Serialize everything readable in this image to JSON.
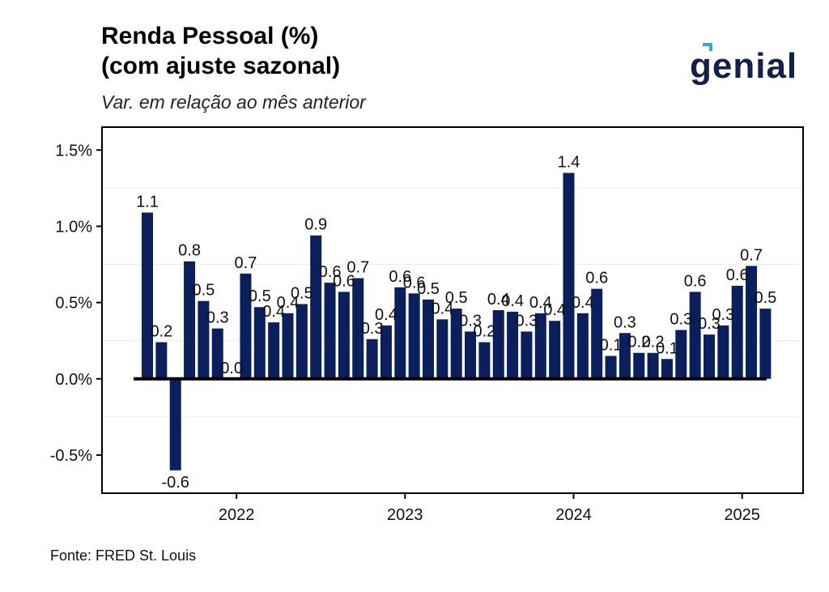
{
  "header": {
    "title_line1": "Renda Pessoal (%)",
    "title_line2": "(com ajuste sazonal)",
    "subtitle": "Var. em relação ao mês anterior",
    "logo_text": "genial"
  },
  "footer": {
    "source": "Fonte: FRED St. Louis"
  },
  "colors": {
    "bar": "#0b1f5c",
    "logo": "#14204a",
    "logo_accent": "#3aa8e0",
    "zero_line": "#000000"
  },
  "chart_data": {
    "type": "bar",
    "title": "Renda Pessoal (%) (com ajuste sazonal)",
    "subtitle": "Var. em relação ao mês anterior",
    "xlabel": "",
    "ylabel": "",
    "ylim": [
      -0.75,
      1.65
    ],
    "yticks": [
      -0.5,
      0.0,
      0.5,
      1.0,
      1.5
    ],
    "ytick_labels": [
      "-0.5%",
      "0.0%",
      "0.5%",
      "1.0%",
      "1.5%"
    ],
    "xticks": [
      "2022",
      "2023",
      "2024",
      "2025"
    ],
    "xtick_months": [
      "2022-01",
      "2023-01",
      "2024-01",
      "2025-01"
    ],
    "grid": true,
    "legend": "none",
    "months": [
      "2021-07",
      "2021-08",
      "2021-09",
      "2021-10",
      "2021-11",
      "2021-12",
      "2022-01",
      "2022-02",
      "2022-03",
      "2022-04",
      "2022-05",
      "2022-06",
      "2022-07",
      "2022-08",
      "2022-09",
      "2022-10",
      "2022-11",
      "2022-12",
      "2023-01",
      "2023-02",
      "2023-03",
      "2023-04",
      "2023-05",
      "2023-06",
      "2023-07",
      "2023-08",
      "2023-09",
      "2023-10",
      "2023-11",
      "2023-12",
      "2024-01",
      "2024-02",
      "2024-03",
      "2024-04",
      "2024-05",
      "2024-06",
      "2024-07",
      "2024-08",
      "2024-09",
      "2024-10",
      "2024-11",
      "2024-12",
      "2025-01",
      "2025-02",
      "2025-03"
    ],
    "values": [
      1.09,
      0.24,
      -0.6,
      0.77,
      0.51,
      0.33,
      0.0,
      0.69,
      0.47,
      0.37,
      0.43,
      0.49,
      0.94,
      0.63,
      0.57,
      0.66,
      0.26,
      0.35,
      0.6,
      0.56,
      0.52,
      0.39,
      0.46,
      0.31,
      0.24,
      0.45,
      0.44,
      0.31,
      0.43,
      0.38,
      1.35,
      0.43,
      0.59,
      0.15,
      0.3,
      0.17,
      0.17,
      0.13,
      0.32,
      0.57,
      0.29,
      0.35,
      0.61,
      0.74,
      0.46
    ],
    "labels": [
      "1.1",
      "0.2",
      "-0.6",
      "0.8",
      "0.5",
      "0.3",
      "0.0",
      "0.7",
      "0.5",
      "0.4",
      "0.4",
      "0.5",
      "0.9",
      "0.6",
      "0.6",
      "0.7",
      "0.3",
      "0.4",
      "0.6",
      "0.6",
      "0.5",
      "0.4",
      "0.5",
      "0.3",
      "0.2",
      "0.4",
      "0.4",
      "0.3",
      "0.4",
      "0.4",
      "1.4",
      "0.4",
      "0.6",
      "0.1",
      "0.3",
      "0.2",
      "0.2",
      "0.1",
      "0.3",
      "0.6",
      "0.3",
      "0.3",
      "0.6",
      "0.7",
      "0.5"
    ]
  }
}
